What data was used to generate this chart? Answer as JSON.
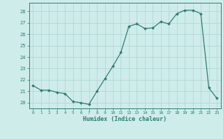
{
  "x": [
    0,
    1,
    2,
    3,
    4,
    5,
    6,
    7,
    8,
    9,
    10,
    11,
    12,
    13,
    14,
    15,
    16,
    17,
    18,
    19,
    20,
    21,
    22,
    23
  ],
  "y": [
    21.5,
    21.1,
    21.1,
    20.9,
    20.8,
    20.1,
    20.0,
    19.85,
    21.0,
    22.1,
    23.2,
    24.4,
    26.7,
    26.9,
    26.5,
    26.55,
    27.1,
    26.9,
    27.8,
    28.1,
    28.1,
    27.8,
    21.3,
    20.4
  ],
  "xlabel": "Humidex (Indice chaleur)",
  "ylim": [
    19.5,
    28.75
  ],
  "xlim": [
    -0.5,
    23.5
  ],
  "yticks": [
    20,
    21,
    22,
    23,
    24,
    25,
    26,
    27,
    28
  ],
  "xticks": [
    0,
    1,
    2,
    3,
    4,
    5,
    6,
    7,
    8,
    9,
    10,
    11,
    12,
    13,
    14,
    15,
    16,
    17,
    18,
    19,
    20,
    21,
    22,
    23
  ],
  "line_color": "#2e7d6e",
  "marker_color": "#2e7d6e",
  "bg_color": "#ceecea",
  "grid_color": "#b0d8d4",
  "axis_color": "#2e7d6e",
  "tick_label_color": "#2e7d6e",
  "xlabel_color": "#2e7d6e"
}
